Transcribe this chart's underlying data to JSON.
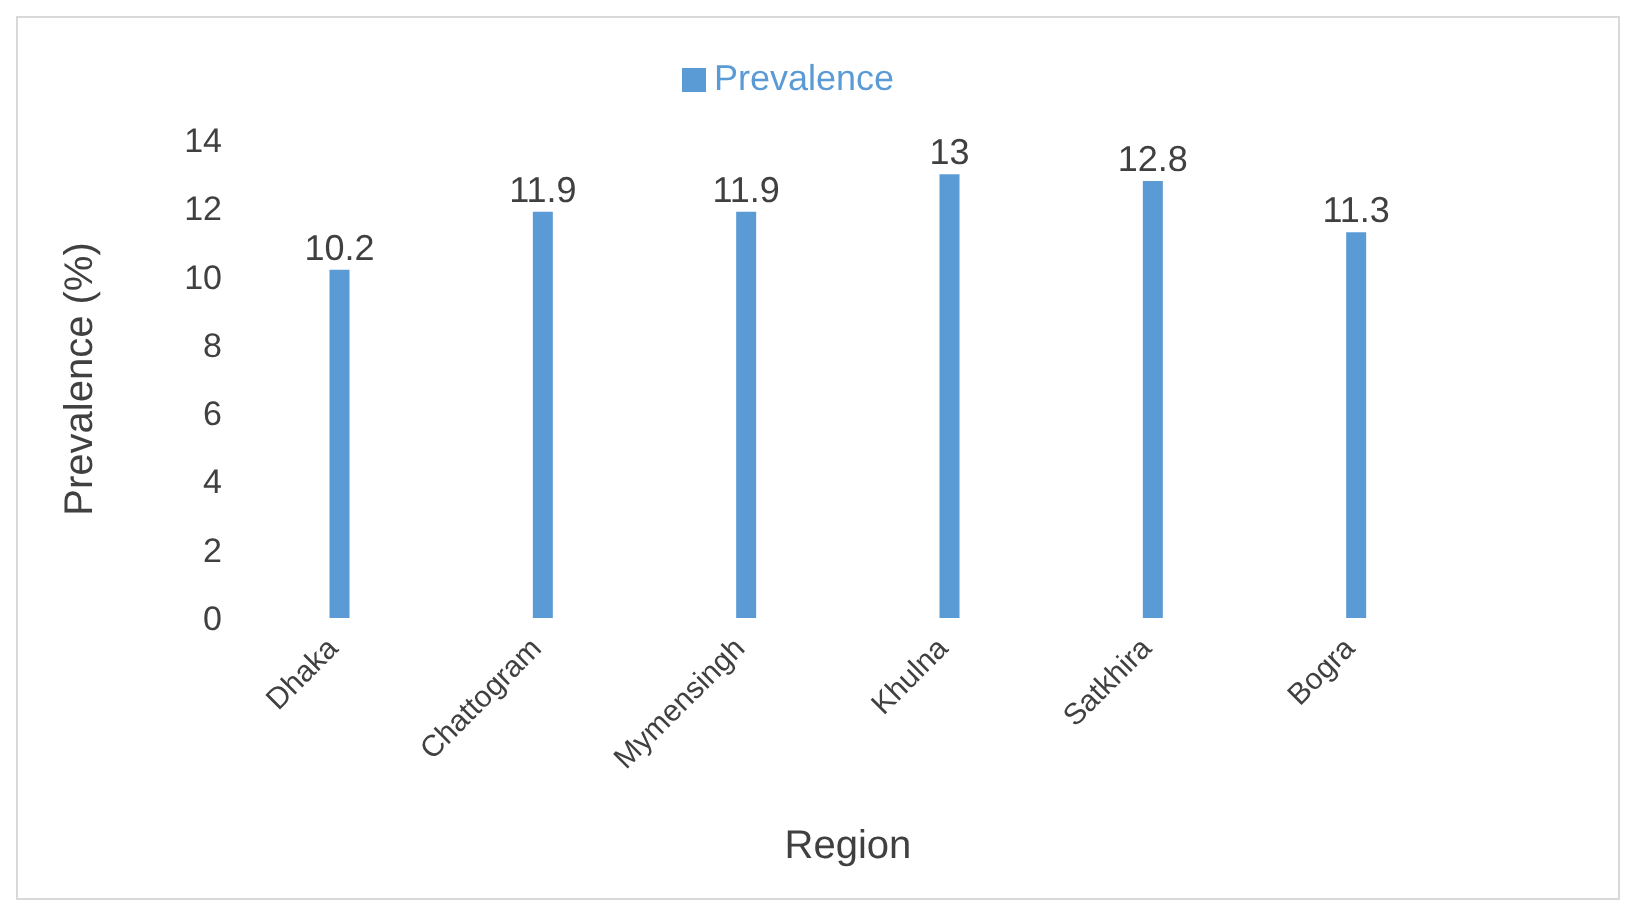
{
  "chart_data": {
    "type": "bar",
    "xlabel": "Region",
    "ylabel": "Prevalence (%)",
    "categories": [
      "Dhaka",
      "Chattogram",
      "Mymensingh",
      "Khulna",
      "Satkhira",
      "Bogra"
    ],
    "series": [
      {
        "name": "Prevalence",
        "color": "#5b9bd5",
        "values": [
          10.2,
          11.9,
          11.9,
          13,
          12.8,
          11.3
        ]
      }
    ],
    "ylim": [
      0,
      14
    ],
    "yticks": [
      0,
      2,
      4,
      6,
      8,
      10,
      12,
      14
    ],
    "grid": false,
    "legend": "top",
    "data_labels": true
  }
}
